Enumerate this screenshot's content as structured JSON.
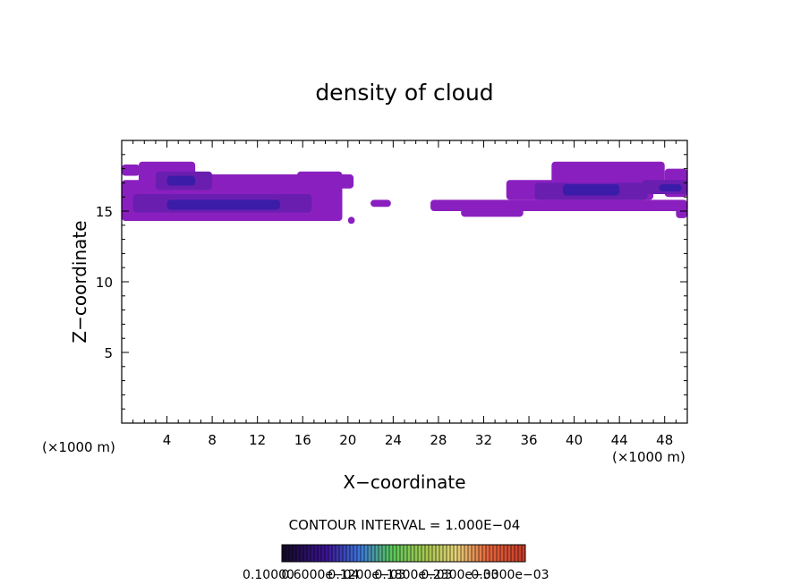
{
  "chart_data": {
    "type": "heatmap",
    "title": "density of cloud",
    "xlabel": "X−coordinate",
    "ylabel": "Z−coordinate",
    "x_unit_left": "(×1000 m)",
    "x_unit_right": "(×1000 m)",
    "xlim": [
      0,
      50
    ],
    "ylim": [
      0,
      20
    ],
    "x_ticks": [
      4,
      8,
      12,
      16,
      20,
      24,
      28,
      32,
      36,
      40,
      44,
      48
    ],
    "y_ticks": [
      5,
      10,
      15
    ],
    "contour_interval_label": "CONTOUR INTERVAL = 1.000E−04",
    "colorbar_labels": [
      "0.10000",
      "0.6000e−04",
      "0.1200e−03",
      "0.1800e−03",
      "0.2300e−03",
      "0.3000e−03"
    ],
    "colors": {
      "low": "#8a1fbf",
      "mid": "#6a1eb0",
      "high": "#3a1ca8",
      "peak": "#1f2ad0"
    },
    "regions": [
      {
        "x0": 0.0,
        "x1": 1.6,
        "z0": 17.5,
        "z1": 18.3,
        "level": 0.1
      },
      {
        "x0": 0.0,
        "x1": 19.5,
        "z0": 14.3,
        "z1": 17.2,
        "level": 0.1
      },
      {
        "x0": 1.5,
        "x1": 6.5,
        "z0": 16.2,
        "z1": 18.5,
        "level": 0.1
      },
      {
        "x0": 6.5,
        "x1": 20.5,
        "z0": 16.6,
        "z1": 17.6,
        "level": 0.1
      },
      {
        "x0": 15.5,
        "x1": 19.5,
        "z0": 16.9,
        "z1": 17.8,
        "level": 0.1
      },
      {
        "x0": 1.0,
        "x1": 16.8,
        "z0": 14.9,
        "z1": 16.2,
        "level": 0.6
      },
      {
        "x0": 3.0,
        "x1": 8.0,
        "z0": 16.5,
        "z1": 17.8,
        "level": 0.6
      },
      {
        "x0": 4.0,
        "x1": 14.0,
        "z0": 15.1,
        "z1": 15.8,
        "level": 1.2
      },
      {
        "x0": 4.0,
        "x1": 6.5,
        "z0": 16.8,
        "z1": 17.5,
        "level": 1.2
      },
      {
        "x0": 20.0,
        "x1": 20.6,
        "z0": 14.1,
        "z1": 14.6,
        "level": 0.1
      },
      {
        "x0": 22.0,
        "x1": 23.8,
        "z0": 15.3,
        "z1": 15.8,
        "level": 0.1
      },
      {
        "x0": 27.3,
        "x1": 50.0,
        "z0": 15.0,
        "z1": 15.8,
        "level": 0.1
      },
      {
        "x0": 30.0,
        "x1": 35.5,
        "z0": 14.6,
        "z1": 15.2,
        "level": 0.1
      },
      {
        "x0": 34.0,
        "x1": 47.0,
        "z0": 15.8,
        "z1": 17.2,
        "level": 0.1
      },
      {
        "x0": 38.0,
        "x1": 48.0,
        "z0": 16.6,
        "z1": 18.5,
        "level": 0.1
      },
      {
        "x0": 48.0,
        "x1": 50.0,
        "z0": 16.0,
        "z1": 18.0,
        "level": 0.1
      },
      {
        "x0": 49.0,
        "x1": 50.0,
        "z0": 14.5,
        "z1": 15.2,
        "level": 0.1
      },
      {
        "x0": 36.5,
        "x1": 46.5,
        "z0": 15.8,
        "z1": 17.0,
        "level": 0.6
      },
      {
        "x0": 46.0,
        "x1": 50.0,
        "z0": 16.2,
        "z1": 17.2,
        "level": 0.6
      },
      {
        "x0": 39.0,
        "x1": 44.0,
        "z0": 16.1,
        "z1": 16.9,
        "level": 1.2
      },
      {
        "x0": 47.5,
        "x1": 49.5,
        "z0": 16.4,
        "z1": 16.9,
        "level": 1.2
      }
    ]
  }
}
